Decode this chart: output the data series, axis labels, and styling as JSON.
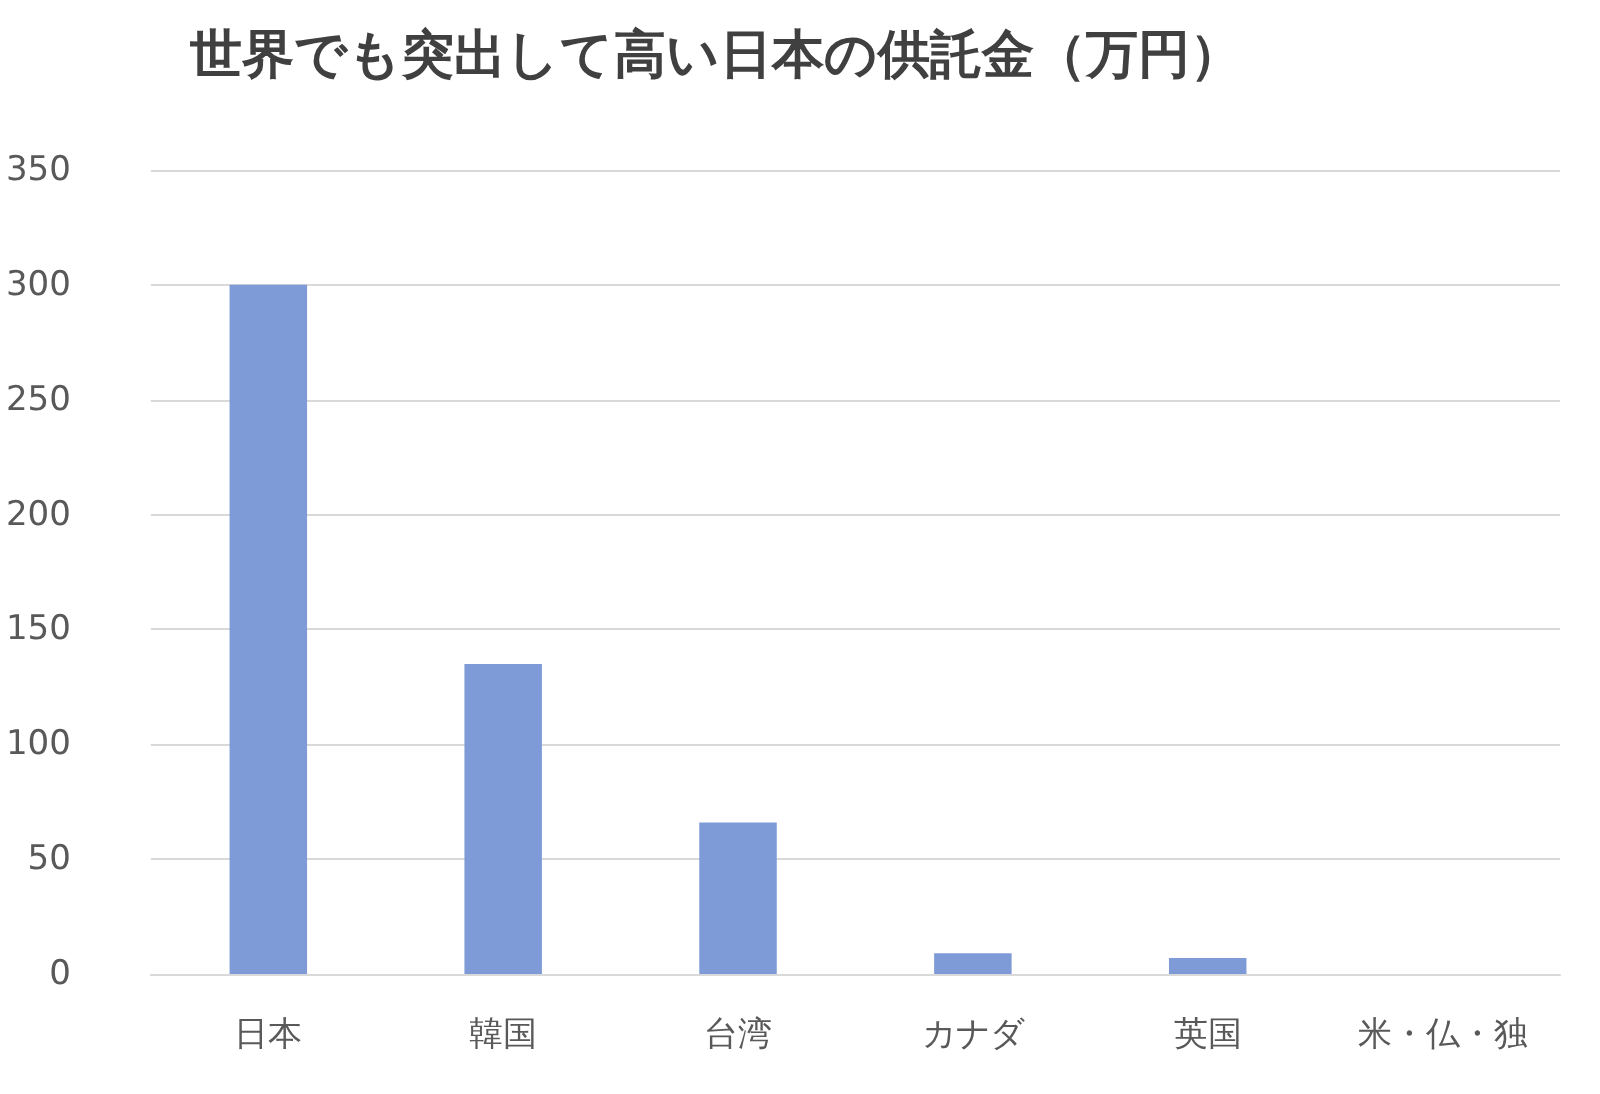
{
  "chart_data": {
    "type": "bar",
    "title": "世界でも突出して高い日本の供託金（万円）",
    "categories": [
      "日本",
      "韓国",
      "台湾",
      "カナダ",
      "英国",
      "米・仏・独"
    ],
    "values": [
      300,
      135,
      66,
      9,
      7,
      0
    ],
    "color": "#7f9bd7",
    "ylim": [
      0,
      350
    ],
    "yticks": [
      0,
      50,
      100,
      150,
      200,
      250,
      300,
      350
    ],
    "grid": "y"
  }
}
